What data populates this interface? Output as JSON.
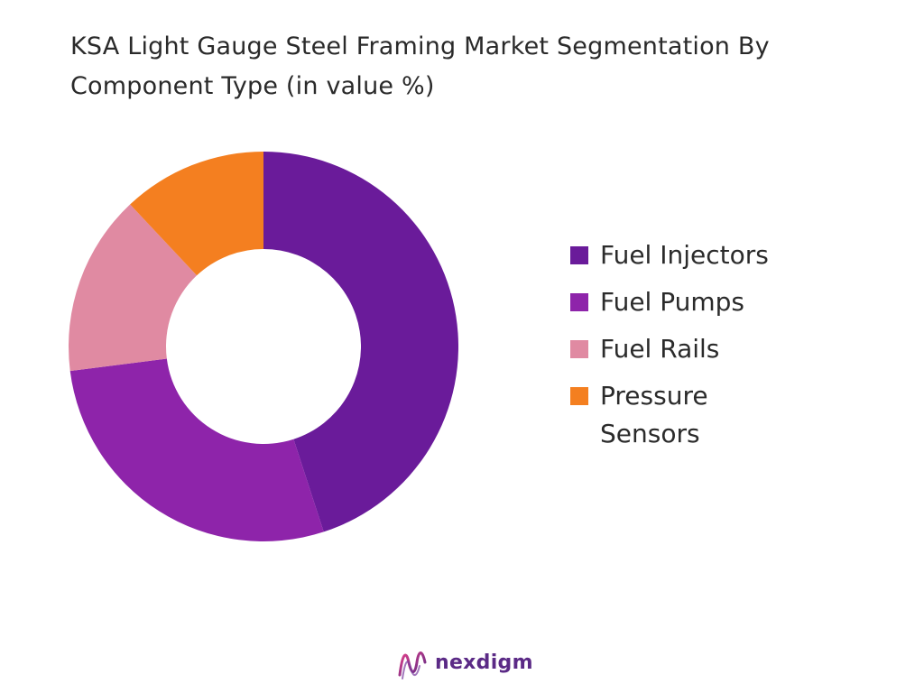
{
  "title": "KSA Light Gauge Steel Framing Market Segmentation By Component Type (in value %)",
  "chart_data": {
    "type": "pie",
    "variant": "donut",
    "title": "KSA Light Gauge Steel Framing Market Segmentation By Component Type (in value %)",
    "categories": [
      "Fuel Injectors",
      "Fuel Pumps",
      "Fuel Rails",
      "Pressure Sensors"
    ],
    "values": [
      45,
      28,
      15,
      12
    ],
    "colors": [
      "#6a1b9a",
      "#8e24aa",
      "#e08aa2",
      "#f47f20"
    ],
    "legend_placement": "right"
  },
  "brand": {
    "name": "nexdigm",
    "logo_icon": "nexdigm-wave-logo-icon"
  }
}
